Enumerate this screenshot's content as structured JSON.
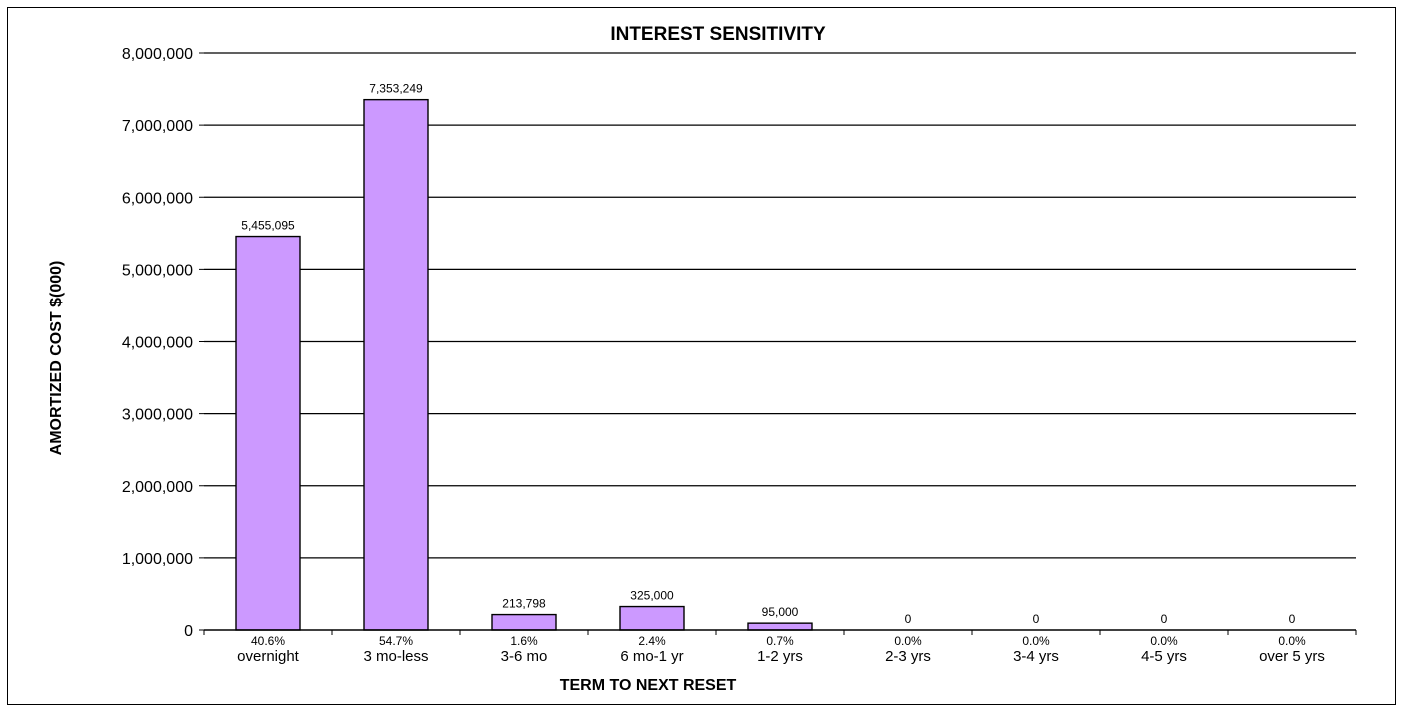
{
  "chart_data": {
    "type": "bar",
    "title": "INTEREST SENSITIVITY",
    "xlabel": "TERM TO NEXT RESET",
    "ylabel": "AMORTIZED COST $(000)",
    "ylim": [
      0,
      8000000
    ],
    "yticks": [
      "0",
      "1,000,000",
      "2,000,000",
      "3,000,000",
      "4,000,000",
      "5,000,000",
      "6,000,000",
      "7,000,000",
      "8,000,000"
    ],
    "categories": [
      "overnight",
      "3 mo-less",
      "3-6 mo",
      "6 mo-1 yr",
      "1-2 yrs",
      "2-3 yrs",
      "3-4 yrs",
      "4-5 yrs",
      "over 5 yrs"
    ],
    "percentages": [
      "40.6%",
      "54.7%",
      "1.6%",
      "2.4%",
      "0.7%",
      "0.0%",
      "0.0%",
      "0.0%",
      "0.0%"
    ],
    "values": [
      5455095,
      7353249,
      213798,
      325000,
      95000,
      0,
      0,
      0,
      0
    ],
    "value_labels": [
      "5,455,095",
      "7,353,249",
      "213,798",
      "325,000",
      "95,000",
      "0",
      "0",
      "0",
      "0"
    ],
    "bar_color": "#cc99ff",
    "grid": true,
    "legend": "none"
  }
}
